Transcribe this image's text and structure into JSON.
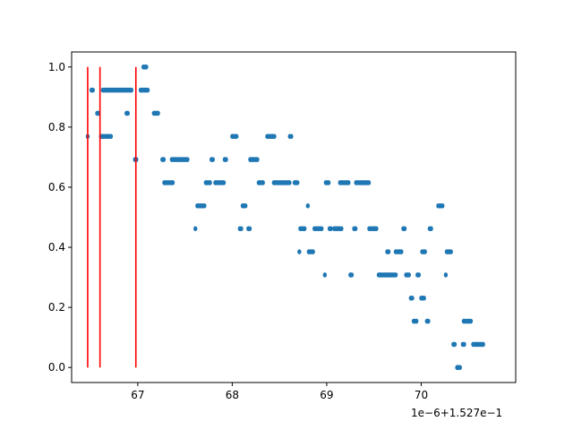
{
  "chart_data": {
    "type": "scatter",
    "title": "",
    "xlabel": "",
    "ylabel": "",
    "x_offset_label": "1e−6+1.527e−1",
    "xlim": [
      66.3,
      71.0
    ],
    "ylim": [
      -0.05,
      1.05
    ],
    "x_ticks": [
      67,
      68,
      69,
      70
    ],
    "x_tick_labels": [
      "67",
      "68",
      "69",
      "70"
    ],
    "y_ticks": [
      0.0,
      0.2,
      0.4,
      0.6,
      0.8,
      1.0
    ],
    "y_tick_labels": [
      "0.0",
      "0.2",
      "0.4",
      "0.6",
      "0.8",
      "1.0"
    ],
    "grid": false,
    "colors": {
      "points": "#1f77b4",
      "vlines": "#ff0000",
      "axes": "#000000"
    },
    "vlines": [
      {
        "x": 66.47,
        "ymin": 0.0,
        "ymax": 1.0
      },
      {
        "x": 66.6,
        "ymin": 0.0,
        "ymax": 1.0
      },
      {
        "x": 66.98,
        "ymin": 0.0,
        "ymax": 1.0
      }
    ],
    "point_clusters": [
      {
        "y": 0.769,
        "x": [
          [
            66.47,
            66.48
          ],
          [
            66.61,
            66.72
          ],
          [
            68.0,
            68.06
          ],
          [
            68.37,
            68.46
          ],
          [
            68.61,
            68.64
          ]
        ]
      },
      {
        "y": 0.923,
        "x": [
          [
            66.51,
            66.54
          ],
          [
            66.63,
            66.94
          ],
          [
            67.03,
            67.12
          ]
        ]
      },
      {
        "y": 0.846,
        "x": [
          [
            66.57,
            66.6
          ],
          [
            66.88,
            66.9
          ],
          [
            67.17,
            67.22
          ]
        ]
      },
      {
        "y": 1.0,
        "x": [
          [
            67.06,
            67.1
          ]
        ]
      },
      {
        "y": 0.692,
        "x": [
          [
            66.97,
            66.99
          ],
          [
            67.26,
            67.28
          ],
          [
            67.36,
            67.53
          ],
          [
            67.78,
            67.8
          ],
          [
            67.92,
            67.94
          ],
          [
            68.19,
            68.27
          ]
        ]
      },
      {
        "y": 0.615,
        "x": [
          [
            67.28,
            67.38
          ],
          [
            67.72,
            67.77
          ],
          [
            67.82,
            67.92
          ],
          [
            68.28,
            68.33
          ],
          [
            68.44,
            68.61
          ],
          [
            68.66,
            68.7
          ],
          [
            68.99,
            69.03
          ],
          [
            69.14,
            69.24
          ],
          [
            69.31,
            69.45
          ]
        ]
      },
      {
        "y": 0.538,
        "x": [
          [
            67.63,
            67.71
          ],
          [
            68.11,
            68.15
          ],
          [
            68.8,
            68.81
          ],
          [
            70.18,
            70.23
          ]
        ]
      },
      {
        "y": 0.462,
        "x": [
          [
            67.61,
            67.62
          ],
          [
            68.08,
            68.1
          ],
          [
            68.17,
            68.19
          ],
          [
            68.72,
            68.77
          ],
          [
            68.87,
            68.96
          ],
          [
            69.03,
            69.06
          ],
          [
            69.08,
            69.16
          ],
          [
            69.29,
            69.32
          ],
          [
            69.45,
            69.53
          ],
          [
            69.81,
            69.83
          ],
          [
            70.09,
            70.12
          ]
        ]
      },
      {
        "y": 0.385,
        "x": [
          [
            68.71,
            68.72
          ],
          [
            68.81,
            68.87
          ],
          [
            69.64,
            69.66
          ],
          [
            69.73,
            69.8
          ],
          [
            70.01,
            70.05
          ],
          [
            70.27,
            70.33
          ]
        ]
      },
      {
        "y": 0.308,
        "x": [
          [
            68.98,
            68.99
          ],
          [
            69.25,
            69.28
          ],
          [
            69.55,
            69.63
          ],
          [
            69.64,
            69.74
          ],
          [
            69.84,
            69.88
          ],
          [
            69.96,
            69.99
          ],
          [
            70.26,
            70.27
          ]
        ]
      },
      {
        "y": 0.231,
        "x": [
          [
            69.89,
            69.91
          ],
          [
            70.0,
            70.04
          ]
        ]
      },
      {
        "y": 0.154,
        "x": [
          [
            69.92,
            69.96
          ],
          [
            70.06,
            70.09
          ],
          [
            70.45,
            70.54
          ]
        ]
      },
      {
        "y": 0.077,
        "x": [
          [
            70.34,
            70.36
          ],
          [
            70.44,
            70.46
          ],
          [
            70.55,
            70.66
          ]
        ]
      },
      {
        "y": 0.0,
        "x": [
          [
            70.38,
            70.42
          ]
        ]
      }
    ]
  }
}
